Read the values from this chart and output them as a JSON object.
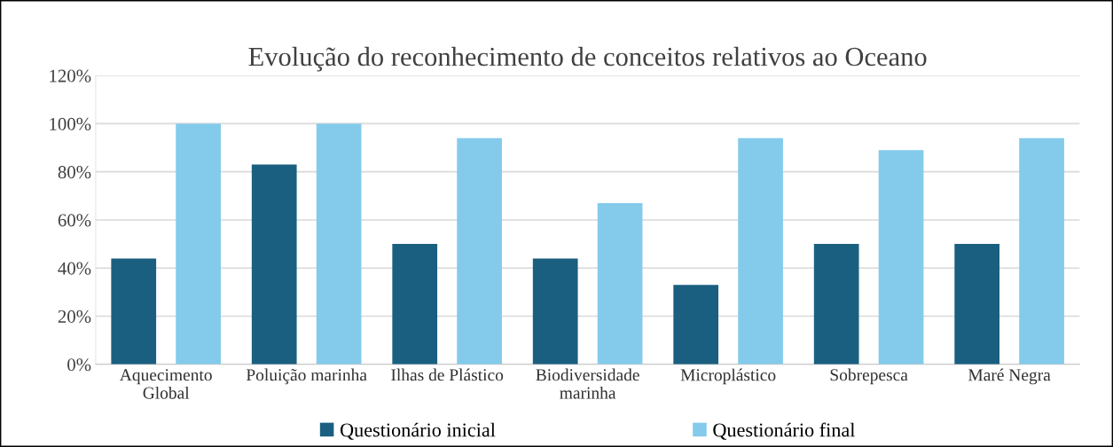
{
  "chart_data": {
    "type": "bar",
    "title": "Evolução do reconhecimento de conceitos relativos ao Oceano",
    "categories": [
      "Aquecimento\nGlobal",
      "Poluição marinha",
      "Ilhas de Plástico",
      "Biodiversidade\nmarinha",
      "Microplástico",
      "Sobrepesca",
      "Maré Negra"
    ],
    "series": [
      {
        "name": "Questionário inicial",
        "color": "#1b5f80",
        "values": [
          44,
          83,
          50,
          44,
          33,
          50,
          50
        ]
      },
      {
        "name": "Questionário final",
        "color": "#84cbeb",
        "values": [
          100,
          100,
          94,
          67,
          94,
          89,
          94
        ]
      }
    ],
    "ylim": [
      0,
      120
    ],
    "yticks": [
      {
        "value": 0,
        "label": "0%"
      },
      {
        "value": 20,
        "label": "20%"
      },
      {
        "value": 40,
        "label": "40%"
      },
      {
        "value": 60,
        "label": "60%"
      },
      {
        "value": 80,
        "label": "80%"
      },
      {
        "value": 100,
        "label": "100%"
      },
      {
        "value": 120,
        "label": "120%"
      }
    ],
    "grid": "y",
    "legend": "bottom"
  }
}
